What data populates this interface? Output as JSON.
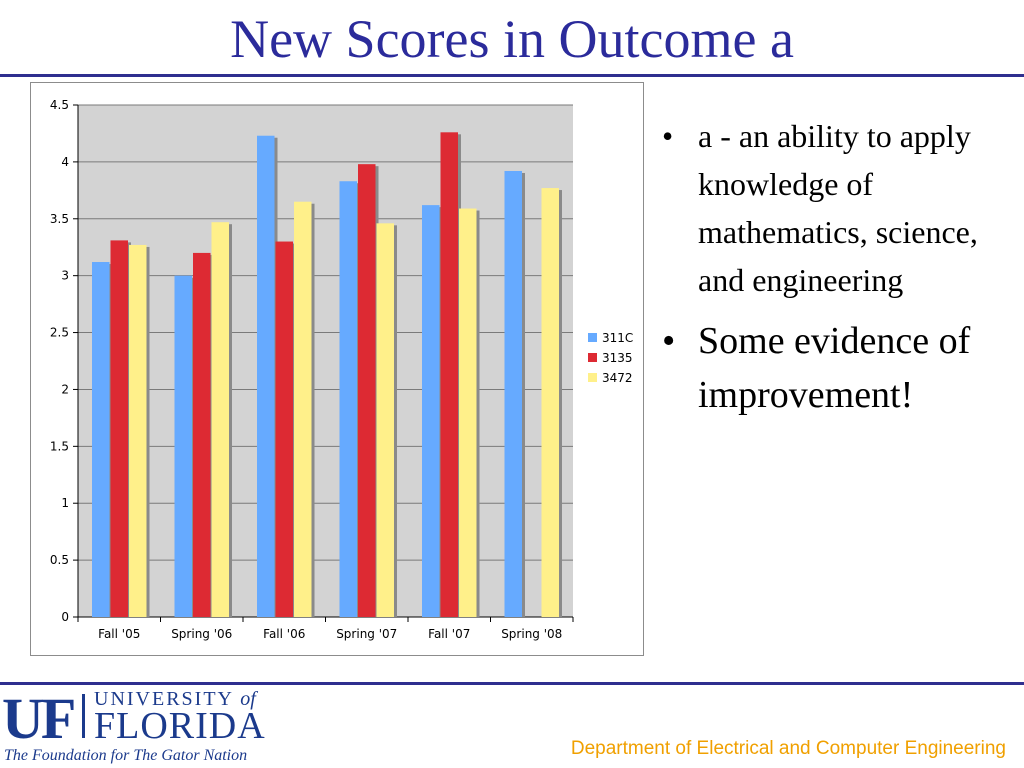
{
  "slide": {
    "title": "New Scores in Outcome a",
    "bullets": [
      "a - an ability to apply knowledge of mathematics, science, and engineering",
      "Some evidence of improvement!"
    ]
  },
  "footer": {
    "logo_uf": "UF",
    "logo_university": "UNIVERSITY",
    "logo_of": "of",
    "logo_florida": "FLORIDA",
    "logo_tagline": "The Foundation for The Gator Nation",
    "department": "Department of Electrical and Computer Engineering"
  },
  "colors": {
    "title": "#2b2b9b",
    "rule": "#2f2f8f",
    "department": "#f0a000",
    "plot_bg": "#d3d3d3"
  },
  "chart_data": {
    "type": "bar",
    "categories": [
      "Fall '05",
      "Spring '06",
      "Fall '06",
      "Spring '07",
      "Fall '07",
      "Spring '08"
    ],
    "series": [
      {
        "name": "311C",
        "color": "#66aaff",
        "values": [
          3.12,
          3.0,
          4.23,
          3.83,
          3.62,
          3.92
        ]
      },
      {
        "name": "3135",
        "color": "#dd2a33",
        "values": [
          3.31,
          3.2,
          3.3,
          3.98,
          4.26,
          null
        ]
      },
      {
        "name": "3472",
        "color": "#fff08a",
        "values": [
          3.27,
          3.47,
          3.65,
          3.46,
          3.59,
          3.77
        ]
      }
    ],
    "y_ticks": [
      "0",
      "0.5",
      "1",
      "1.5",
      "2",
      "2.5",
      "3",
      "3.5",
      "4",
      "4.5"
    ],
    "ylim": [
      0,
      4.5
    ],
    "grid": true,
    "legend_position": "right"
  }
}
